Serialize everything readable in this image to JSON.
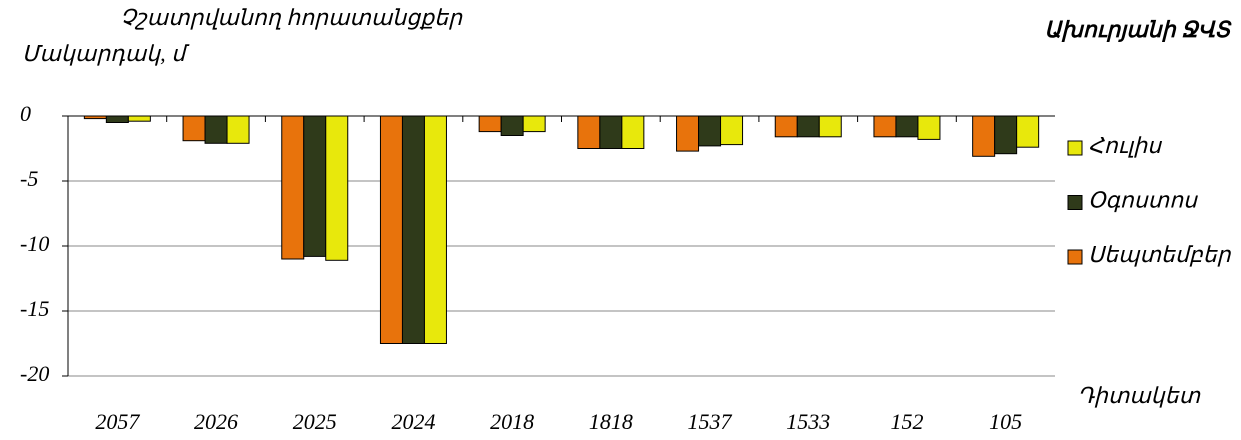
{
  "chart_data": {
    "type": "bar",
    "title": "Ախուրյանի ՋՎՏ",
    "subtitle": "Չշատրվանող հորատանցքեր",
    "y_label": "Մակարդակ, մ",
    "x_label": "Դիտակետ",
    "categories": [
      "2057",
      "2026",
      "2025",
      "2024",
      "2018",
      "1818",
      "1537",
      "1533",
      "152",
      "105"
    ],
    "series": [
      {
        "name": "Սեպտեմբեր",
        "color": "#e8730c",
        "values": [
          -0.2,
          -1.9,
          -11.0,
          -17.5,
          -1.2,
          -2.5,
          -2.7,
          -1.6,
          -1.6,
          -3.1
        ]
      },
      {
        "name": "Օգոստոս",
        "color": "#2f3a1a",
        "values": [
          -0.5,
          -2.1,
          -10.8,
          -17.5,
          -1.5,
          -2.5,
          -2.3,
          -1.6,
          -1.6,
          -2.9
        ]
      },
      {
        "name": "Հուլիս",
        "color": "#e8e80c",
        "values": [
          -0.4,
          -2.1,
          -11.1,
          -17.5,
          -1.2,
          -2.5,
          -2.2,
          -1.6,
          -1.8,
          -2.4
        ]
      }
    ],
    "ylim": [
      -20,
      0
    ],
    "yticks": [
      0,
      -5,
      -10,
      -15,
      -20
    ],
    "grid": true,
    "legend": "right"
  }
}
